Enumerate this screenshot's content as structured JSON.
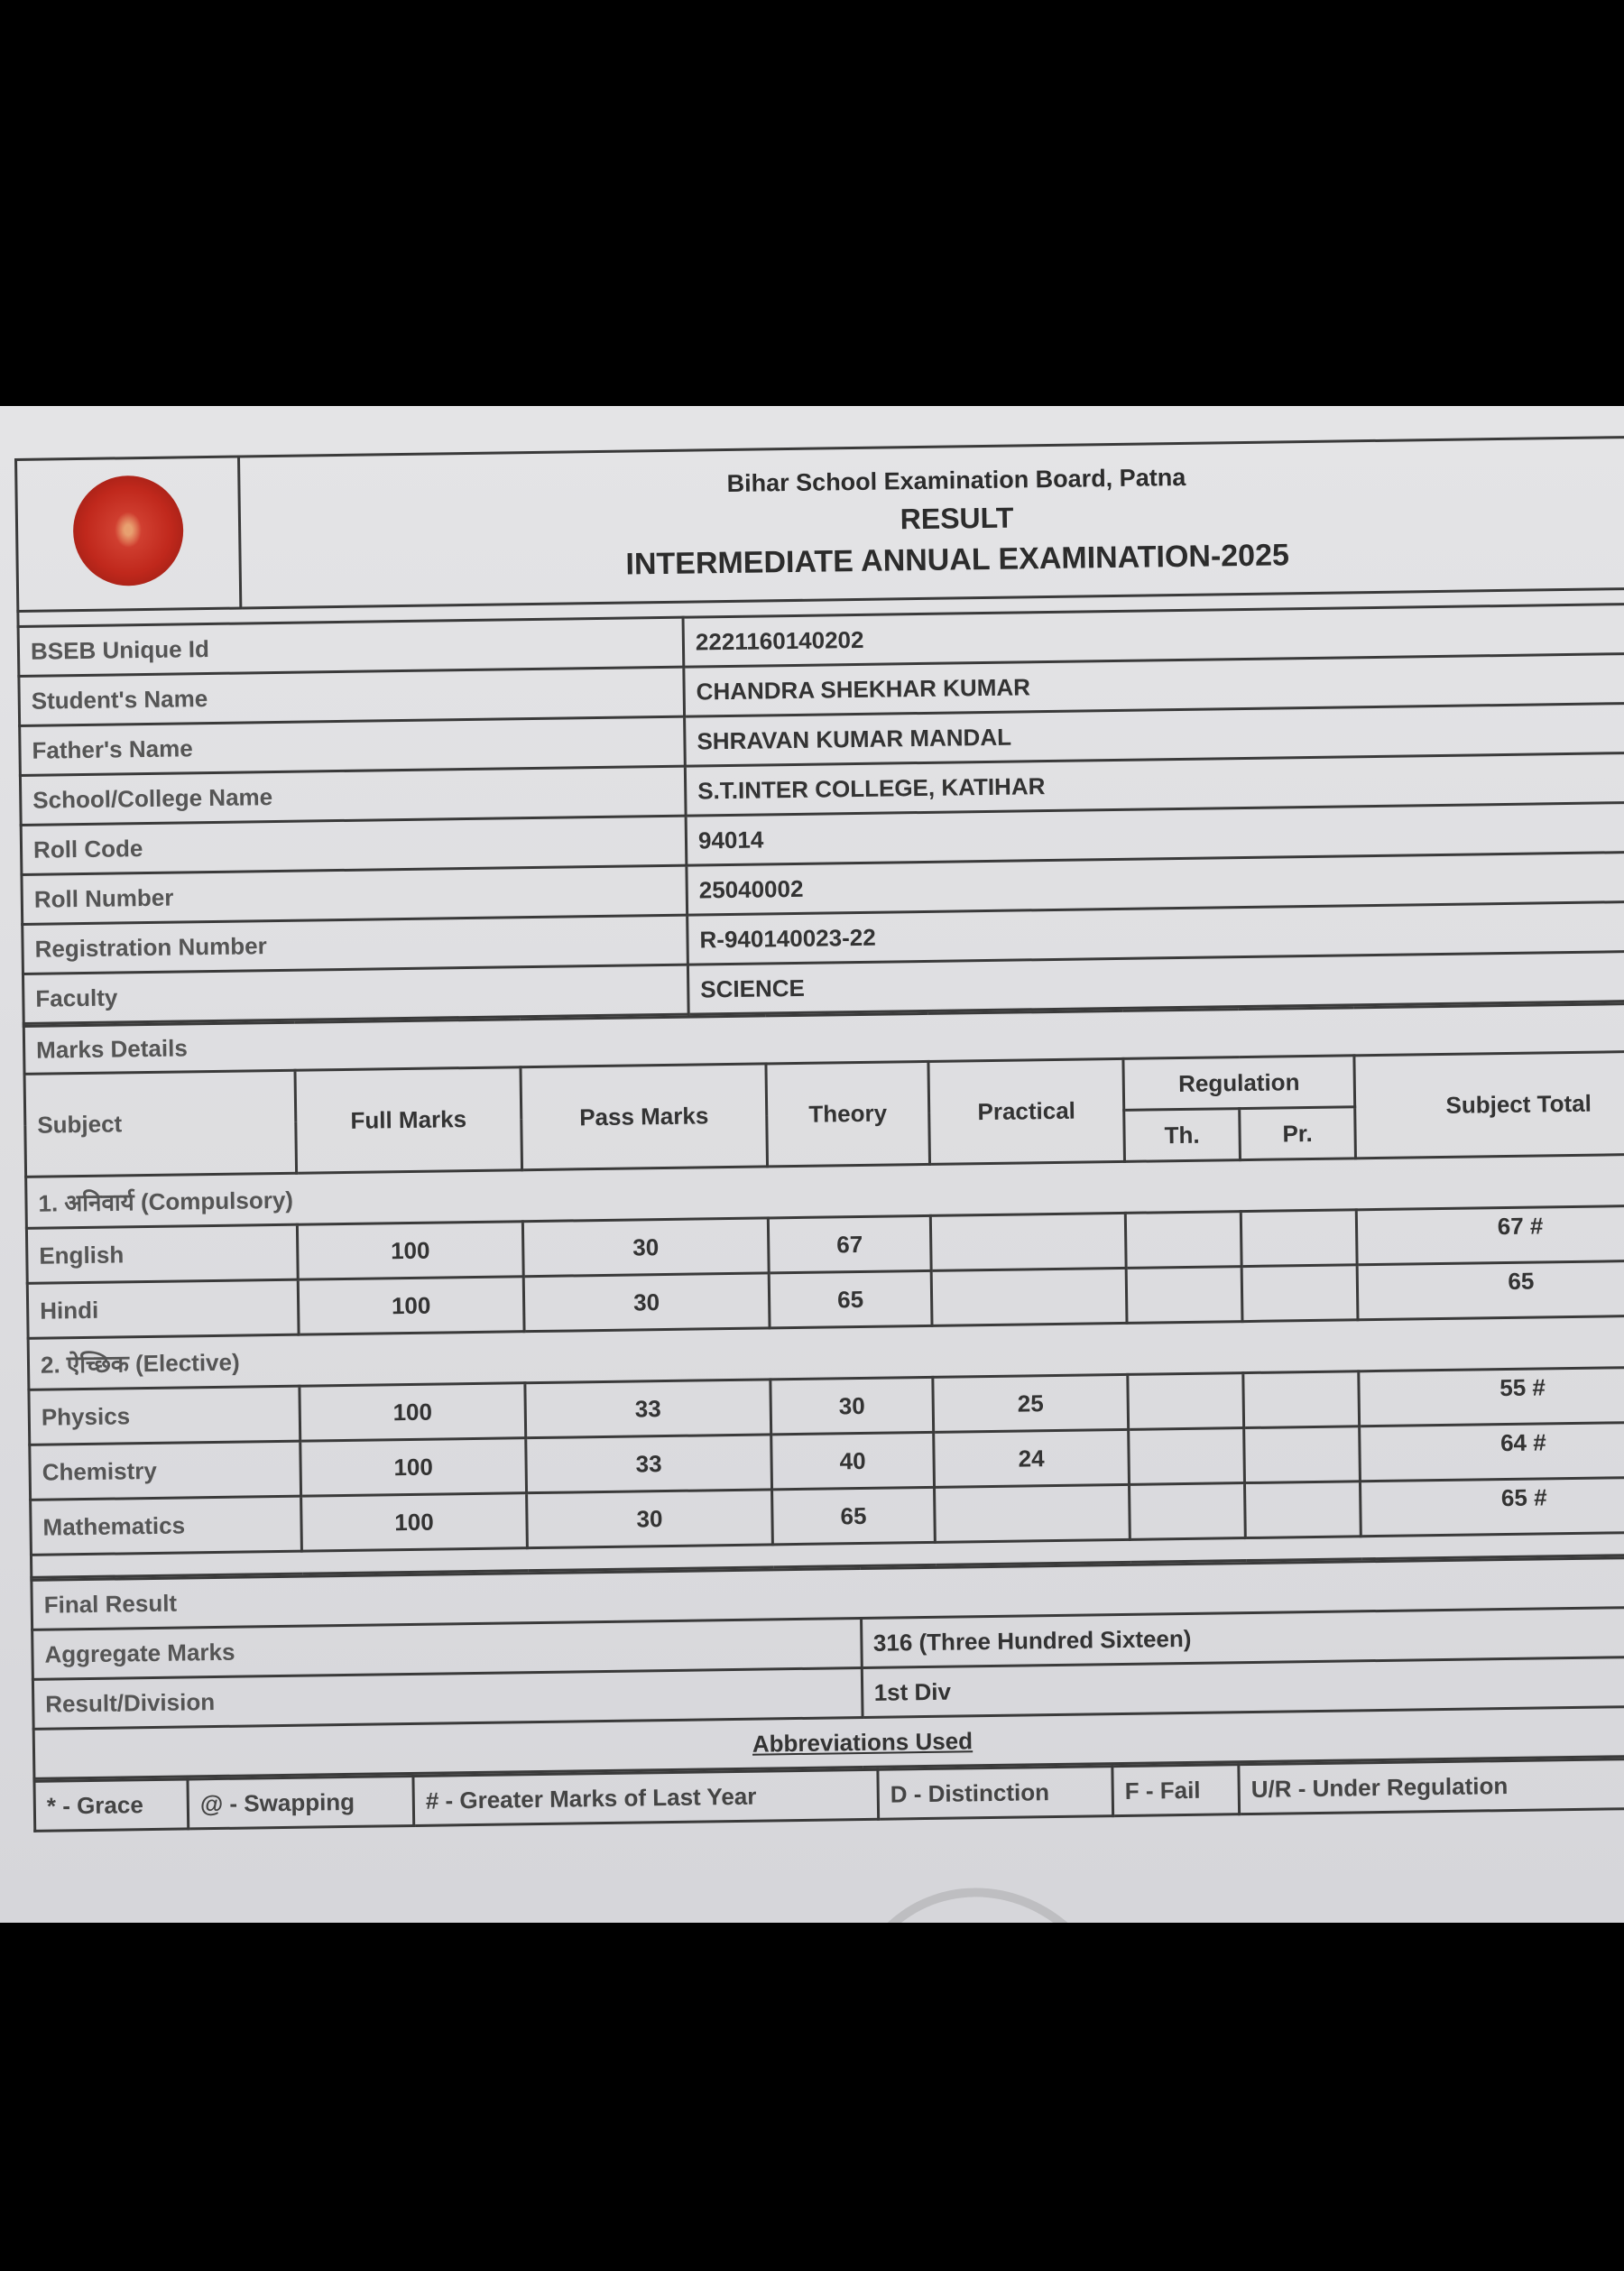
{
  "header": {
    "board": "Bihar School Examination Board, Patna",
    "title": "RESULT",
    "exam": "INTERMEDIATE ANNUAL EXAMINATION-2025"
  },
  "student_info": [
    {
      "label": "BSEB Unique Id",
      "value": "2221160140202"
    },
    {
      "label": "Student's Name",
      "value": "CHANDRA SHEKHAR KUMAR"
    },
    {
      "label": "Father's Name",
      "value": "SHRAVAN KUMAR MANDAL"
    },
    {
      "label": "School/College Name",
      "value": "S.T.INTER COLLEGE, KATIHAR"
    },
    {
      "label": "Roll Code",
      "value": "94014"
    },
    {
      "label": "Roll Number",
      "value": "25040002"
    },
    {
      "label": "Registration Number",
      "value": "R-940140023-22"
    },
    {
      "label": "Faculty",
      "value": "SCIENCE"
    }
  ],
  "marks": {
    "section_title": "Marks Details",
    "columns": {
      "subject": "Subject",
      "full": "Full Marks",
      "pass": "Pass Marks",
      "theory": "Theory",
      "practical": "Practical",
      "regulation": "Regulation",
      "reg_th": "Th.",
      "reg_pr": "Pr.",
      "total": "Subject Total"
    },
    "groups": [
      {
        "title": "1. अनिवार्य (Compulsory)",
        "rows": [
          {
            "subject": "English",
            "full": "100",
            "pass": "30",
            "theory": "67",
            "practical": "",
            "reg_th": "",
            "reg_pr": "",
            "total": "67 #"
          },
          {
            "subject": "Hindi",
            "full": "100",
            "pass": "30",
            "theory": "65",
            "practical": "",
            "reg_th": "",
            "reg_pr": "",
            "total": "65"
          }
        ]
      },
      {
        "title": "2. ऐच्छिक (Elective)",
        "rows": [
          {
            "subject": "Physics",
            "full": "100",
            "pass": "33",
            "theory": "30",
            "practical": "25",
            "reg_th": "",
            "reg_pr": "",
            "total": "55 #"
          },
          {
            "subject": "Chemistry",
            "full": "100",
            "pass": "33",
            "theory": "40",
            "practical": "24",
            "reg_th": "",
            "reg_pr": "",
            "total": "64 #"
          },
          {
            "subject": "Mathematics",
            "full": "100",
            "pass": "30",
            "theory": "65",
            "practical": "",
            "reg_th": "",
            "reg_pr": "",
            "total": "65 #"
          }
        ]
      }
    ]
  },
  "final_result": {
    "title": "Final Result",
    "aggregate_label": "Aggregate Marks",
    "aggregate_value": "316 (Three Hundred Sixteen)",
    "division_label": "Result/Division",
    "division_value": "1st Div"
  },
  "abbreviations": {
    "title": "Abbreviations Used",
    "items": [
      "* - Grace",
      "@ - Swapping",
      "# - Greater Marks of Last Year",
      "D - Distinction",
      "F - Fail",
      "U/R - Under Regulation"
    ]
  },
  "colors": {
    "logo": "#c0281c",
    "paper": "#e0e0e3",
    "background": "#000000"
  }
}
